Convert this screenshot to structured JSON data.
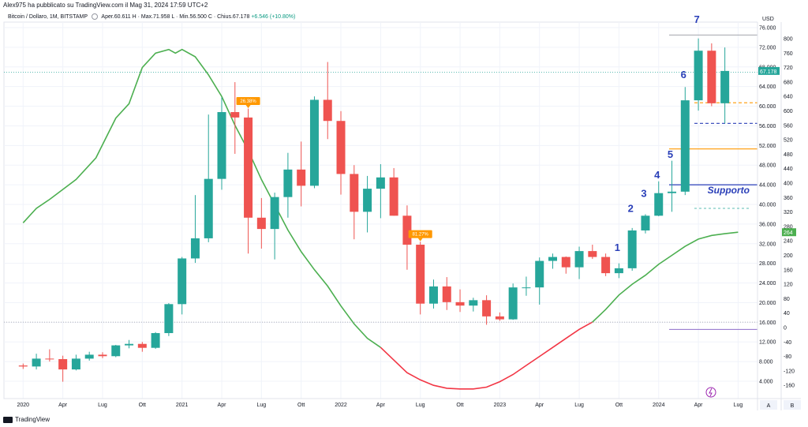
{
  "header": {
    "publisher": "Alex975 ha pubblicato su TradingView.com il Mag 31, 2024 17:59 UTC+2",
    "symbol": "Bitcoin / Dollaro, 1M, BITSTAMP",
    "ohlc": "Aper.60.611  H · Max.71.958  L · Min.56.500  C · Chius.67.178",
    "change": "+6.546 (+10.80%)"
  },
  "brand": "TradingView",
  "axis": {
    "currency": "USD",
    "btn_a": "A",
    "btn_b": "B"
  },
  "colors": {
    "up": "#26a69a",
    "down": "#ef5350",
    "green_line": "#4caf50",
    "red_line": "#f23645",
    "wave": "#2a3fb8",
    "orange": "#ff9800"
  },
  "chart_data": {
    "type": "candlestick",
    "interval": "1M",
    "x_labels": [
      "2020",
      "Apr",
      "Lug",
      "Ott",
      "2021",
      "Apr",
      "Lug",
      "Ott",
      "2022",
      "Apr",
      "Lug",
      "Ott",
      "2023",
      "Apr",
      "Lug",
      "Ott",
      "2024",
      "Apr",
      "Lug"
    ],
    "y_ticks_price": [
      "76.000",
      "72.000",
      "68.000",
      "64.000",
      "60.000",
      "56.000",
      "52.000",
      "48.000",
      "44.000",
      "40.000",
      "36.000",
      "32.000",
      "28.000",
      "24.000",
      "20.000",
      "16.000",
      "12.000",
      "8.000",
      "4.000"
    ],
    "y_ticks_osc": [
      "800",
      "760",
      "720",
      "680",
      "640",
      "600",
      "560",
      "520",
      "480",
      "440",
      "400",
      "360",
      "320",
      "280",
      "240",
      "200",
      "160",
      "120",
      "80",
      "40",
      "0",
      "-40",
      "-80",
      "-120",
      "-160"
    ],
    "last_price_label": "67.178",
    "osc_value_label": "264",
    "candles": [
      {
        "o": 7.2,
        "h": 7.6,
        "l": 6.5,
        "c": 7.0
      },
      {
        "o": 7.0,
        "h": 9.6,
        "l": 6.4,
        "c": 8.6
      },
      {
        "o": 8.6,
        "h": 10.5,
        "l": 8.0,
        "c": 8.5
      },
      {
        "o": 8.5,
        "h": 9.2,
        "l": 3.9,
        "c": 6.4
      },
      {
        "o": 6.4,
        "h": 9.4,
        "l": 6.2,
        "c": 8.6
      },
      {
        "o": 8.6,
        "h": 10.0,
        "l": 8.2,
        "c": 9.4
      },
      {
        "o": 9.4,
        "h": 9.9,
        "l": 8.7,
        "c": 9.1
      },
      {
        "o": 9.1,
        "h": 11.4,
        "l": 8.9,
        "c": 11.3
      },
      {
        "o": 11.3,
        "h": 12.4,
        "l": 10.7,
        "c": 11.6
      },
      {
        "o": 11.6,
        "h": 12.0,
        "l": 10.0,
        "c": 10.8
      },
      {
        "o": 10.8,
        "h": 14.0,
        "l": 10.6,
        "c": 13.8
      },
      {
        "o": 13.8,
        "h": 19.9,
        "l": 13.2,
        "c": 19.7
      },
      {
        "o": 19.7,
        "h": 29.3,
        "l": 17.6,
        "c": 29.0
      },
      {
        "o": 29.0,
        "h": 41.9,
        "l": 28.1,
        "c": 33.1
      },
      {
        "o": 33.1,
        "h": 58.3,
        "l": 32.3,
        "c": 45.2
      },
      {
        "o": 45.2,
        "h": 61.8,
        "l": 43.0,
        "c": 58.8
      },
      {
        "o": 58.8,
        "h": 64.9,
        "l": 50.3,
        "c": 57.7
      },
      {
        "o": 57.7,
        "h": 59.5,
        "l": 30.0,
        "c": 37.3
      },
      {
        "o": 37.3,
        "h": 41.3,
        "l": 31.0,
        "c": 35.0
      },
      {
        "o": 35.0,
        "h": 42.4,
        "l": 28.8,
        "c": 41.5
      },
      {
        "o": 41.5,
        "h": 50.5,
        "l": 37.3,
        "c": 47.1
      },
      {
        "o": 47.1,
        "h": 52.8,
        "l": 39.6,
        "c": 43.8
      },
      {
        "o": 43.8,
        "h": 62.0,
        "l": 43.3,
        "c": 61.3
      },
      {
        "o": 61.3,
        "h": 69.0,
        "l": 53.3,
        "c": 57.0
      },
      {
        "o": 57.0,
        "h": 59.0,
        "l": 42.0,
        "c": 46.2
      },
      {
        "o": 46.2,
        "h": 48.0,
        "l": 32.9,
        "c": 38.5
      },
      {
        "o": 38.5,
        "h": 45.8,
        "l": 34.3,
        "c": 43.2
      },
      {
        "o": 43.2,
        "h": 48.2,
        "l": 37.2,
        "c": 45.5
      },
      {
        "o": 45.5,
        "h": 47.4,
        "l": 37.7,
        "c": 37.7
      },
      {
        "o": 37.7,
        "h": 39.8,
        "l": 26.7,
        "c": 31.8
      },
      {
        "o": 31.8,
        "h": 32.4,
        "l": 17.6,
        "c": 19.8
      },
      {
        "o": 19.8,
        "h": 24.7,
        "l": 18.8,
        "c": 23.3
      },
      {
        "o": 23.3,
        "h": 25.2,
        "l": 18.5,
        "c": 20.1
      },
      {
        "o": 20.1,
        "h": 22.7,
        "l": 18.1,
        "c": 19.4
      },
      {
        "o": 19.4,
        "h": 21.0,
        "l": 18.2,
        "c": 20.5
      },
      {
        "o": 20.5,
        "h": 21.5,
        "l": 15.5,
        "c": 17.2
      },
      {
        "o": 17.2,
        "h": 18.0,
        "l": 16.3,
        "c": 16.6
      },
      {
        "o": 16.6,
        "h": 23.9,
        "l": 16.5,
        "c": 23.1
      },
      {
        "o": 23.1,
        "h": 25.3,
        "l": 21.4,
        "c": 23.1
      },
      {
        "o": 23.1,
        "h": 29.2,
        "l": 19.6,
        "c": 28.5
      },
      {
        "o": 28.5,
        "h": 30.0,
        "l": 26.9,
        "c": 29.3
      },
      {
        "o": 29.3,
        "h": 29.4,
        "l": 25.9,
        "c": 27.2
      },
      {
        "o": 27.2,
        "h": 31.4,
        "l": 24.8,
        "c": 30.5
      },
      {
        "o": 30.5,
        "h": 31.8,
        "l": 28.9,
        "c": 29.3
      },
      {
        "o": 29.3,
        "h": 30.0,
        "l": 25.4,
        "c": 26.0
      },
      {
        "o": 26.0,
        "h": 28.0,
        "l": 25.0,
        "c": 27.0
      },
      {
        "o": 27.0,
        "h": 35.2,
        "l": 26.5,
        "c": 34.7
      },
      {
        "o": 34.7,
        "h": 38.0,
        "l": 34.1,
        "c": 37.7
      },
      {
        "o": 37.7,
        "h": 44.7,
        "l": 37.6,
        "c": 42.3
      },
      {
        "o": 42.3,
        "h": 48.9,
        "l": 38.5,
        "c": 42.6
      },
      {
        "o": 42.6,
        "h": 63.9,
        "l": 41.9,
        "c": 61.2
      },
      {
        "o": 61.2,
        "h": 73.8,
        "l": 59.1,
        "c": 71.3
      },
      {
        "o": 71.3,
        "h": 72.8,
        "l": 60.0,
        "c": 60.6
      },
      {
        "o": 60.6,
        "h": 71.96,
        "l": 56.5,
        "c": 67.18
      }
    ],
    "osc_green": [
      [
        0,
        290
      ],
      [
        2,
        330
      ],
      [
        4,
        355
      ],
      [
        8,
        410
      ],
      [
        11,
        470
      ],
      [
        14,
        580
      ],
      [
        16,
        620
      ],
      [
        18,
        720
      ],
      [
        20,
        760
      ],
      [
        22,
        770
      ],
      [
        23,
        760
      ],
      [
        24,
        770
      ],
      [
        26,
        750
      ],
      [
        28,
        700
      ],
      [
        30,
        640
      ],
      [
        32,
        560
      ],
      [
        34,
        490
      ],
      [
        36,
        410
      ],
      [
        38,
        340
      ],
      [
        40,
        270
      ],
      [
        42,
        210
      ],
      [
        44,
        160
      ],
      [
        46,
        115
      ],
      [
        48,
        60
      ],
      [
        50,
        10
      ],
      [
        52,
        -30
      ],
      [
        54,
        -55
      ]
    ],
    "osc_red": [
      [
        54,
        -55
      ],
      [
        56,
        -90
      ],
      [
        58,
        -125
      ],
      [
        60,
        -145
      ],
      [
        62,
        -160
      ],
      [
        64,
        -168
      ],
      [
        66,
        -170
      ],
      [
        68,
        -170
      ],
      [
        70,
        -165
      ],
      [
        72,
        -150
      ],
      [
        74,
        -130
      ],
      [
        76,
        -105
      ],
      [
        78,
        -80
      ],
      [
        80,
        -55
      ],
      [
        82,
        -30
      ],
      [
        84,
        -5
      ],
      [
        86,
        15
      ]
    ],
    "osc_green_2": [
      [
        86,
        15
      ],
      [
        88,
        50
      ],
      [
        90,
        90
      ],
      [
        92,
        120
      ],
      [
        94,
        145
      ],
      [
        96,
        175
      ],
      [
        98,
        200
      ],
      [
        100,
        225
      ],
      [
        102,
        245
      ],
      [
        104,
        255
      ],
      [
        106,
        260
      ],
      [
        108,
        264
      ]
    ],
    "levels": [
      {
        "name": "supporto",
        "price": 44.0,
        "color": "#2a3fb8",
        "label": "Supporto"
      },
      {
        "name": "orange-solid",
        "price": 51.3,
        "color": "#ff9800"
      },
      {
        "name": "blue-dashed",
        "price": 56.5,
        "color": "#2a3fb8",
        "dash": true
      },
      {
        "name": "orange-dashed",
        "price": 60.7,
        "color": "#ff9800",
        "dash": true
      }
    ],
    "waves": [
      "1",
      "2",
      "3",
      "4",
      "5",
      "6",
      "7"
    ],
    "annotations": [
      {
        "text": "26.38%"
      },
      {
        "text": "81.27%"
      }
    ]
  }
}
